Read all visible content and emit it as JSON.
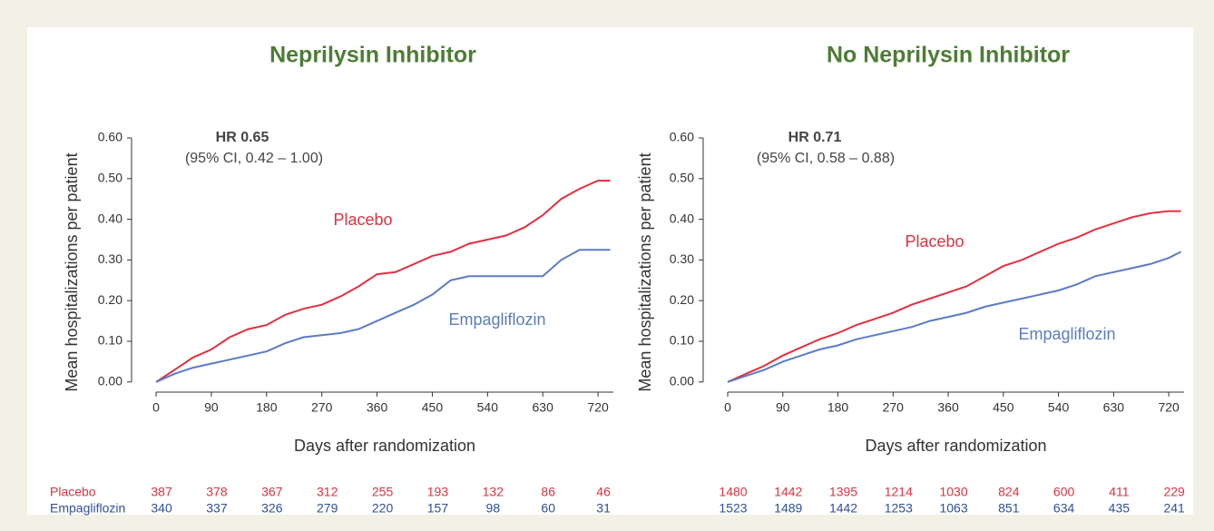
{
  "chart_data": [
    {
      "type": "line",
      "title": "Neprilysin Inhibitor",
      "annotation_title": "HR 0.65",
      "annotation": "(95% CI, 0.42 – 1.00)",
      "x_label": "Days after randomization",
      "y_label": "Mean hospitalizations per patient",
      "xlim": [
        -40,
        745
      ],
      "ylim": [
        -0.025,
        0.6
      ],
      "xticks": [
        0,
        90,
        180,
        270,
        360,
        450,
        540,
        630,
        720
      ],
      "yticks": [
        {
          "value": 0,
          "label": "0.00"
        },
        {
          "value": 0.1,
          "label": "0.10"
        },
        {
          "value": 0.2,
          "label": "0.20"
        },
        {
          "value": 0.3,
          "label": "0.30"
        },
        {
          "value": 0.4,
          "label": "0.40"
        },
        {
          "value": 0.5,
          "label": "0.50"
        },
        {
          "value": 0.6,
          "label": "0.60"
        }
      ],
      "x": [
        0,
        30,
        60,
        90,
        120,
        150,
        180,
        210,
        240,
        270,
        300,
        330,
        360,
        390,
        420,
        450,
        480,
        510,
        540,
        570,
        600,
        630,
        660,
        690,
        720,
        740
      ],
      "series": [
        {
          "name": "Placebo",
          "color": "#e3303f",
          "values": [
            0,
            0.03,
            0.06,
            0.08,
            0.11,
            0.13,
            0.14,
            0.165,
            0.18,
            0.19,
            0.21,
            0.235,
            0.265,
            0.27,
            0.29,
            0.31,
            0.32,
            0.34,
            0.35,
            0.36,
            0.38,
            0.41,
            0.45,
            0.475,
            0.495,
            0.495
          ],
          "at_risk": [
            387,
            378,
            367,
            312,
            255,
            193,
            132,
            86,
            46
          ]
        },
        {
          "name": "Empagliflozin",
          "color": "#5b7cc2",
          "values": [
            0,
            0.02,
            0.035,
            0.045,
            0.055,
            0.065,
            0.075,
            0.095,
            0.11,
            0.115,
            0.12,
            0.13,
            0.15,
            0.17,
            0.19,
            0.215,
            0.25,
            0.26,
            0.26,
            0.26,
            0.26,
            0.26,
            0.3,
            0.325,
            0.325,
            0.325
          ],
          "at_risk": [
            340,
            337,
            326,
            279,
            220,
            157,
            98,
            60,
            31
          ]
        }
      ]
    },
    {
      "type": "line",
      "title": "No Neprilysin Inhibitor",
      "annotation_title": "HR 0.71",
      "annotation": "(95% CI, 0.58 – 0.88)",
      "x_label": "Days after randomization",
      "y_label": "Mean hospitalizations per patient",
      "xlim": [
        -40,
        745
      ],
      "ylim": [
        -0.025,
        0.6
      ],
      "xticks": [
        0,
        90,
        180,
        270,
        360,
        450,
        540,
        630,
        720
      ],
      "yticks": [
        {
          "value": 0,
          "label": "0.00"
        },
        {
          "value": 0.1,
          "label": "0.10"
        },
        {
          "value": 0.2,
          "label": "0.20"
        },
        {
          "value": 0.3,
          "label": "0.30"
        },
        {
          "value": 0.4,
          "label": "0.40"
        },
        {
          "value": 0.5,
          "label": "0.50"
        },
        {
          "value": 0.6,
          "label": "0.60"
        }
      ],
      "x": [
        0,
        30,
        60,
        90,
        120,
        150,
        180,
        210,
        240,
        270,
        300,
        330,
        360,
        390,
        420,
        450,
        480,
        510,
        540,
        570,
        600,
        630,
        660,
        690,
        720,
        740
      ],
      "series": [
        {
          "name": "Placebo",
          "color": "#e3303f",
          "values": [
            0,
            0.02,
            0.04,
            0.065,
            0.085,
            0.105,
            0.12,
            0.14,
            0.155,
            0.17,
            0.19,
            0.205,
            0.22,
            0.235,
            0.26,
            0.285,
            0.3,
            0.32,
            0.34,
            0.355,
            0.375,
            0.39,
            0.405,
            0.415,
            0.42,
            0.42
          ],
          "at_risk": [
            1480,
            1442,
            1395,
            1214,
            1030,
            824,
            600,
            411,
            229
          ]
        },
        {
          "name": "Empagliflozin",
          "color": "#5b7cc2",
          "values": [
            0,
            0.015,
            0.03,
            0.05,
            0.065,
            0.08,
            0.09,
            0.105,
            0.115,
            0.125,
            0.135,
            0.15,
            0.16,
            0.17,
            0.185,
            0.195,
            0.205,
            0.215,
            0.225,
            0.24,
            0.26,
            0.27,
            0.28,
            0.29,
            0.305,
            0.32
          ],
          "at_risk": [
            1523,
            1489,
            1442,
            1253,
            1063,
            851,
            634,
            435,
            241
          ]
        }
      ]
    }
  ]
}
